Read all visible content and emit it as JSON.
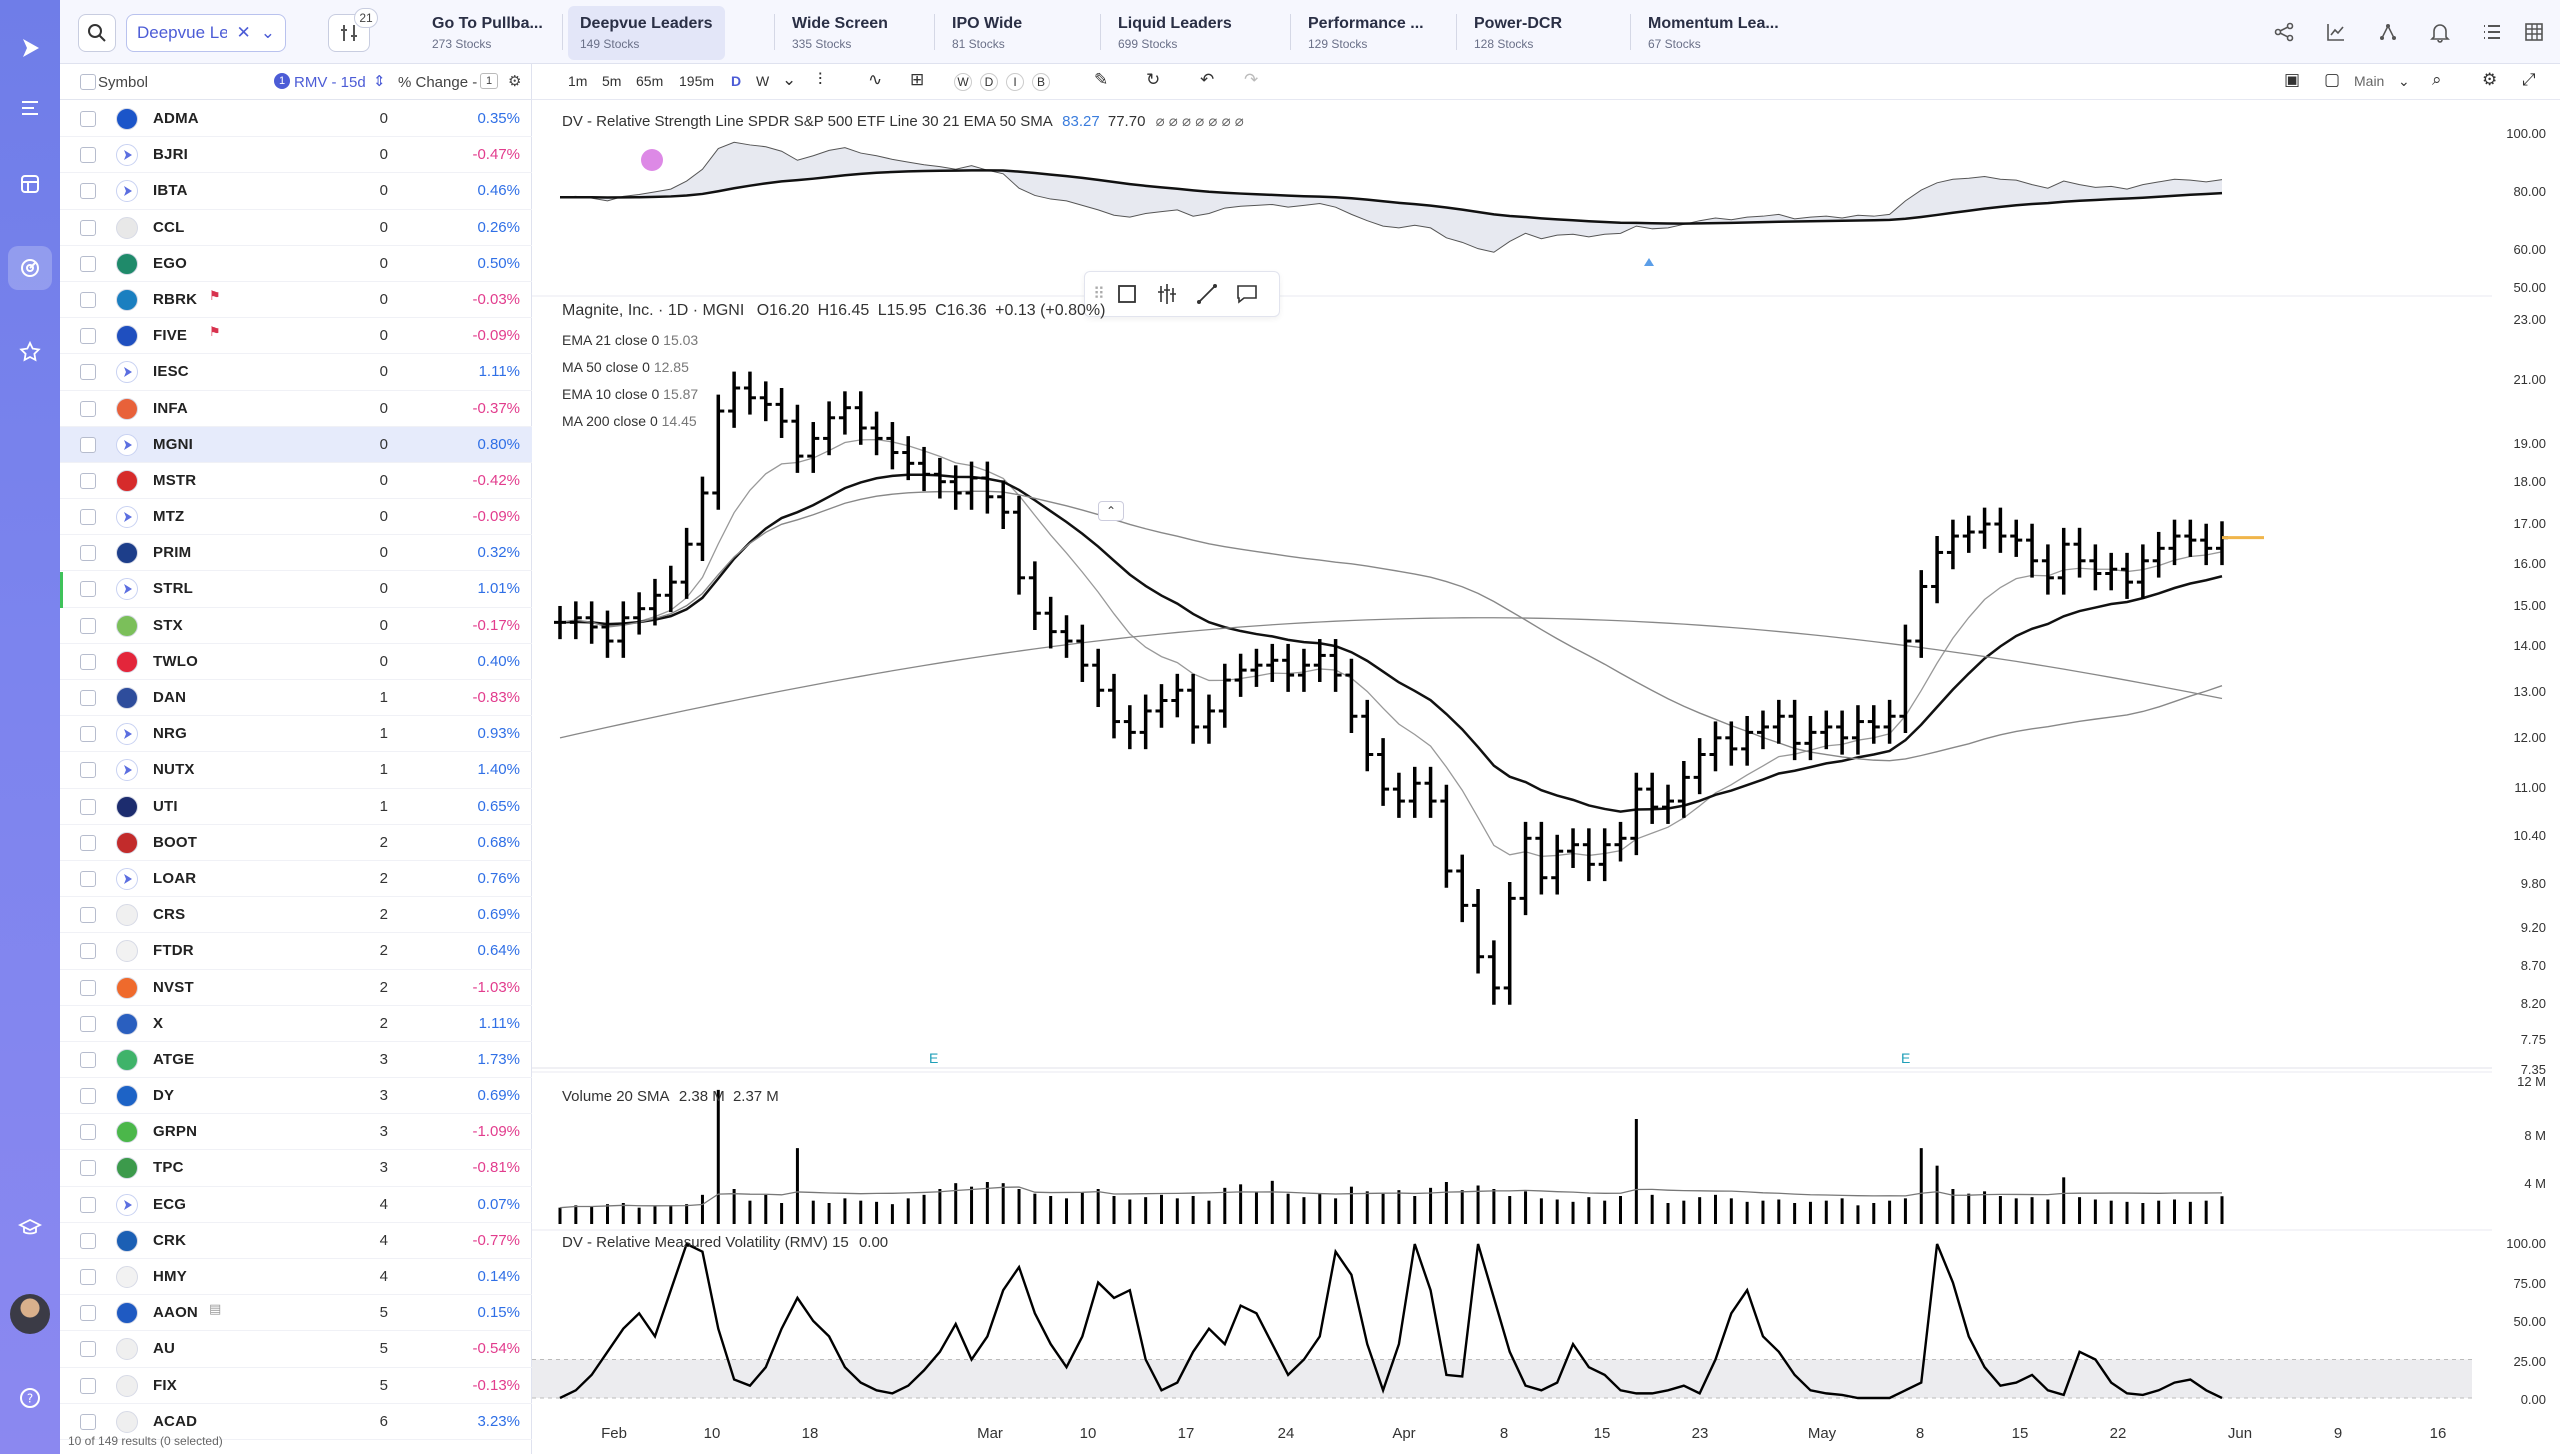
{
  "sidebar": {
    "icons": [
      "logo-play-icon",
      "menu-lines-icon",
      "layout-icon",
      "radar-icon",
      "star-icon",
      "graduation-icon",
      "help-icon"
    ]
  },
  "topbar": {
    "watchlist": "Deepvue Le...",
    "filter_count": "21",
    "tabs": [
      {
        "title": "Go To Pullba...",
        "sub": "273 Stocks"
      },
      {
        "title": "Deepvue Leaders",
        "sub": "149 Stocks"
      },
      {
        "title": "Wide Screen",
        "sub": "335 Stocks"
      },
      {
        "title": "IPO Wide",
        "sub": "81 Stocks"
      },
      {
        "title": "Liquid Leaders",
        "sub": "699 Stocks"
      },
      {
        "title": "Performance ...",
        "sub": "129 Stocks"
      },
      {
        "title": "Power-DCR",
        "sub": "128 Stocks"
      },
      {
        "title": "Momentum Lea...",
        "sub": "67 Stocks"
      }
    ]
  },
  "list": {
    "head": {
      "symbol": "Symbol",
      "rmv_badge": "1",
      "rmv": "RMV - 15d",
      "change": "% Change -",
      "change_badge": "1"
    },
    "rows": [
      {
        "sym": "ADMA",
        "rmv": "0",
        "chg": "0.35%",
        "logo": "#1b55c9"
      },
      {
        "sym": "BJRI",
        "rmv": "0",
        "chg": "-0.47%",
        "logo": "play"
      },
      {
        "sym": "IBTA",
        "rmv": "0",
        "chg": "0.46%",
        "logo": "play"
      },
      {
        "sym": "CCL",
        "rmv": "0",
        "chg": "0.26%",
        "logo": "#e8e8e8"
      },
      {
        "sym": "EGO",
        "rmv": "0",
        "chg": "0.50%",
        "logo": "#1f8a6a"
      },
      {
        "sym": "RBRK",
        "rmv": "0",
        "chg": "-0.03%",
        "logo": "#1a7fc0",
        "flag": true
      },
      {
        "sym": "FIVE",
        "rmv": "0",
        "chg": "-0.09%",
        "logo": "#1f4fbf",
        "flag": true
      },
      {
        "sym": "IESC",
        "rmv": "0",
        "chg": "1.11%",
        "logo": "play"
      },
      {
        "sym": "INFA",
        "rmv": "0",
        "chg": "-0.37%",
        "logo": "#e8613a"
      },
      {
        "sym": "MGNI",
        "rmv": "0",
        "chg": "0.80%",
        "logo": "play",
        "sel": true
      },
      {
        "sym": "MSTR",
        "rmv": "0",
        "chg": "-0.42%",
        "logo": "#d62b2b"
      },
      {
        "sym": "MTZ",
        "rmv": "0",
        "chg": "-0.09%",
        "logo": "play"
      },
      {
        "sym": "PRIM",
        "rmv": "0",
        "chg": "0.32%",
        "logo": "#1d3e8a"
      },
      {
        "sym": "STRL",
        "rmv": "0",
        "chg": "1.01%",
        "logo": "play"
      },
      {
        "sym": "STX",
        "rmv": "0",
        "chg": "-0.17%",
        "logo": "#7bbf5a"
      },
      {
        "sym": "TWLO",
        "rmv": "0",
        "chg": "0.40%",
        "logo": "#e3263b"
      },
      {
        "sym": "DAN",
        "rmv": "1",
        "chg": "-0.83%",
        "logo": "#2e4d9c"
      },
      {
        "sym": "NRG",
        "rmv": "1",
        "chg": "0.93%",
        "logo": "play"
      },
      {
        "sym": "NUTX",
        "rmv": "1",
        "chg": "1.40%",
        "logo": "play"
      },
      {
        "sym": "UTI",
        "rmv": "1",
        "chg": "0.65%",
        "logo": "#1c2c6e"
      },
      {
        "sym": "BOOT",
        "rmv": "2",
        "chg": "0.68%",
        "logo": "#c22b2b"
      },
      {
        "sym": "LOAR",
        "rmv": "2",
        "chg": "0.76%",
        "logo": "play"
      },
      {
        "sym": "CRS",
        "rmv": "2",
        "chg": "0.69%",
        "logo": "#f0f0f0"
      },
      {
        "sym": "FTDR",
        "rmv": "2",
        "chg": "0.64%",
        "logo": "#f2f2f2"
      },
      {
        "sym": "NVST",
        "rmv": "2",
        "chg": "-1.03%",
        "logo": "#ef6a2c"
      },
      {
        "sym": "X",
        "rmv": "2",
        "chg": "1.11%",
        "logo": "#2a5fbf"
      },
      {
        "sym": "ATGE",
        "rmv": "3",
        "chg": "1.73%",
        "logo": "#3fb36a"
      },
      {
        "sym": "DY",
        "rmv": "3",
        "chg": "0.69%",
        "logo": "#1d63c6"
      },
      {
        "sym": "GRPN",
        "rmv": "3",
        "chg": "-1.09%",
        "logo": "#4bb74a"
      },
      {
        "sym": "TPC",
        "rmv": "3",
        "chg": "-0.81%",
        "logo": "#3c9a4b"
      },
      {
        "sym": "ECG",
        "rmv": "4",
        "chg": "0.07%",
        "logo": "play"
      },
      {
        "sym": "CRK",
        "rmv": "4",
        "chg": "-0.77%",
        "logo": "#1b5fb4"
      },
      {
        "sym": "HMY",
        "rmv": "4",
        "chg": "0.14%",
        "logo": "#f2f2f2"
      },
      {
        "sym": "AAON",
        "rmv": "5",
        "chg": "0.15%",
        "logo": "#1f5ac2",
        "note": true
      },
      {
        "sym": "AU",
        "rmv": "5",
        "chg": "-0.54%",
        "logo": "#efefef"
      },
      {
        "sym": "FIX",
        "rmv": "5",
        "chg": "-0.13%",
        "logo": "#efefef"
      },
      {
        "sym": "ACAD",
        "rmv": "6",
        "chg": "3.23%",
        "logo": "#efefef"
      }
    ],
    "footer": "10 of 149 results (0 selected)"
  },
  "chart_toolbar": {
    "intervals": [
      "1m",
      "5m",
      "65m",
      "195m",
      "D",
      "W"
    ],
    "period_letters": [
      "W",
      "D",
      "I",
      "B"
    ],
    "layout": "Main"
  },
  "chart_data": {
    "type": "line",
    "symbol_label": "Magnite, Inc. · 1D · MGNI",
    "ohlc": {
      "open": "O16.20",
      "high": "H16.45",
      "low": "L15.95",
      "close": "C16.36",
      "change": "+0.13 (+0.80%)"
    },
    "indicators": [
      {
        "label": "EMA 21 close 0",
        "value": "15.03"
      },
      {
        "label": "MA 50 close 0",
        "value": "12.85"
      },
      {
        "label": "EMA 10 close 0",
        "value": "15.87"
      },
      {
        "label": "MA 200 close 0",
        "value": "14.45"
      }
    ],
    "rs_line": {
      "label": "DV - Relative Strength Line SPDR S&P 500 ETF Line 30 21 EMA 50 SMA",
      "v1": "83.27",
      "v2": "77.70",
      "dots": "⌀ ⌀ ⌀ ⌀ ⌀ ⌀ ⌀",
      "axis": [
        "100.00",
        "80.00",
        "60.00",
        "50.00"
      ]
    },
    "price_axis": [
      "23.00",
      "21.00",
      "19.00",
      "18.00",
      "17.00",
      "16.00",
      "15.00",
      "14.00",
      "13.00",
      "12.00",
      "11.00",
      "10.40",
      "9.80",
      "9.20",
      "8.70",
      "8.20",
      "7.75",
      "7.35"
    ],
    "volume": {
      "label": "Volume 20 SMA",
      "v1": "2.38 M",
      "v2": "2.37 M",
      "axis": [
        "12 M",
        "8 M",
        "4 M"
      ]
    },
    "rmv": {
      "label": "DV - Relative Measured Volatility (RMV) 15",
      "value": "0.00",
      "axis": [
        "100.00",
        "75.00",
        "50.00",
        "25.00",
        "0.00"
      ]
    },
    "earnings_marks": [
      "E",
      "E"
    ],
    "x_ticks": [
      "Feb",
      "10",
      "18",
      "Mar",
      "10",
      "17",
      "24",
      "Apr",
      "8",
      "15",
      "23",
      "May",
      "8",
      "15",
      "22",
      "Jun",
      "9",
      "16"
    ],
    "closes": [
      14.4,
      14.5,
      14.3,
      14.0,
      14.5,
      14.7,
      15.0,
      15.3,
      16.2,
      17.5,
      19.8,
      20.5,
      20.2,
      20.0,
      19.5,
      18.5,
      19.0,
      19.6,
      19.9,
      19.3,
      19.0,
      18.6,
      18.3,
      18.0,
      17.8,
      17.5,
      17.9,
      17.4,
      17.0,
      15.4,
      14.6,
      14.2,
      14.0,
      13.5,
      13.0,
      12.4,
      12.2,
      12.6,
      12.8,
      13.0,
      12.3,
      12.6,
      13.2,
      13.4,
      13.5,
      13.6,
      13.3,
      13.5,
      13.7,
      13.3,
      12.5,
      11.8,
      11.2,
      11.0,
      11.3,
      11.0,
      9.9,
      9.4,
      8.7,
      8.3,
      9.5,
      10.4,
      9.8,
      10.2,
      10.3,
      10.0,
      10.3,
      10.4,
      11.2,
      10.9,
      11.0,
      11.4,
      11.8,
      12.1,
      11.9,
      12.2,
      12.3,
      12.5,
      12.0,
      12.2,
      12.3,
      12.1,
      12.4,
      12.3,
      12.5,
      14.0,
      15.2,
      16.0,
      16.4,
      16.5,
      16.7,
      16.4,
      16.3,
      15.8,
      15.4,
      16.2,
      15.8,
      15.5,
      15.6,
      15.3,
      15.8,
      16.1,
      16.4,
      16.3,
      16.1,
      16.36
    ],
    "volumes_m": [
      1.4,
      1.6,
      1.5,
      1.7,
      1.8,
      1.4,
      1.5,
      1.6,
      1.7,
      2.5,
      11.5,
      3.0,
      2.0,
      2.5,
      1.8,
      6.5,
      2.0,
      1.8,
      2.2,
      2.0,
      1.9,
      1.7,
      2.2,
      2.5,
      3.0,
      3.5,
      3.2,
      3.6,
      3.5,
      3.0,
      2.6,
      2.4,
      2.2,
      2.7,
      3.0,
      2.4,
      2.1,
      2.3,
      2.5,
      2.2,
      2.4,
      2.0,
      3.1,
      3.4,
      2.7,
      3.7,
      2.6,
      2.3,
      2.6,
      2.2,
      3.2,
      2.8,
      2.6,
      2.9,
      2.4,
      3.1,
      3.6,
      2.9,
      3.3,
      3.0,
      2.4,
      2.8,
      2.2,
      2.1,
      1.9,
      2.3,
      2.0,
      2.4,
      9.0,
      2.5,
      1.8,
      2.0,
      2.3,
      2.5,
      2.2,
      1.9,
      2.0,
      2.1,
      1.8,
      1.9,
      2.0,
      2.2,
      1.6,
      1.8,
      2.0,
      2.2,
      6.5,
      5.0,
      3.0,
      2.6,
      2.8,
      2.4,
      2.2,
      2.3,
      2.1,
      4.0,
      2.3,
      2.1,
      2.0,
      1.9,
      1.8,
      2.0,
      2.1,
      1.9,
      2.0,
      2.38
    ],
    "rmv_values": [
      0,
      5,
      15,
      30,
      45,
      55,
      40,
      70,
      100,
      95,
      45,
      12,
      8,
      20,
      45,
      65,
      50,
      40,
      20,
      10,
      5,
      3,
      8,
      18,
      30,
      48,
      25,
      40,
      70,
      85,
      55,
      35,
      20,
      40,
      75,
      65,
      70,
      25,
      5,
      10,
      30,
      45,
      35,
      60,
      55,
      35,
      15,
      25,
      40,
      95,
      80,
      35,
      5,
      35,
      100,
      70,
      15,
      14,
      100,
      65,
      30,
      8,
      5,
      10,
      35,
      20,
      15,
      5,
      3,
      3,
      5,
      8,
      3,
      25,
      55,
      70,
      40,
      30,
      15,
      5,
      3,
      2,
      0,
      0,
      0,
      5,
      10,
      100,
      75,
      40,
      20,
      8,
      10,
      15,
      5,
      2,
      30,
      25,
      10,
      3,
      2,
      5,
      10,
      12,
      5,
      0
    ]
  }
}
